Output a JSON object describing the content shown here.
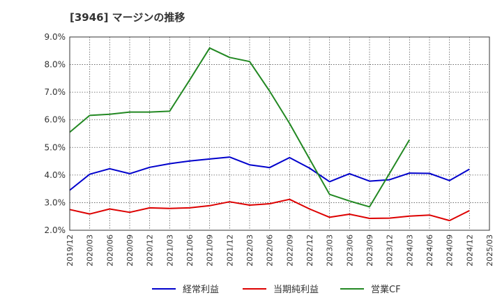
{
  "chart_data": {
    "type": "line",
    "title": "[3946]  マージンの推移",
    "xlabel": "",
    "ylabel": "",
    "ylim": [
      2.0,
      9.0
    ],
    "y_ticks": [
      "2.0%",
      "3.0%",
      "4.0%",
      "5.0%",
      "6.0%",
      "7.0%",
      "8.0%",
      "9.0%"
    ],
    "x": [
      "2019/12",
      "2020/03",
      "2020/06",
      "2020/09",
      "2020/12",
      "2021/03",
      "2021/06",
      "2021/09",
      "2021/12",
      "2022/03",
      "2022/06",
      "2022/09",
      "2022/12",
      "2023/03",
      "2023/06",
      "2023/09",
      "2023/12",
      "2024/03",
      "2024/06",
      "2024/09",
      "2024/12",
      "2025/03"
    ],
    "grid": true,
    "legend_position": "bottom",
    "series": [
      {
        "name": "経常利益",
        "color": "#0000cc",
        "values": [
          3.45,
          4.03,
          4.23,
          4.05,
          4.28,
          4.41,
          4.51,
          4.58,
          4.65,
          4.37,
          4.27,
          4.63,
          4.25,
          3.76,
          4.05,
          3.78,
          3.83,
          4.07,
          4.06,
          3.8,
          4.21,
          null
        ]
      },
      {
        "name": "当期純利益",
        "color": "#dd0000",
        "values": [
          2.75,
          2.59,
          2.77,
          2.65,
          2.81,
          2.79,
          2.81,
          2.89,
          3.03,
          2.91,
          2.96,
          3.12,
          2.77,
          2.47,
          2.58,
          2.43,
          2.44,
          2.51,
          2.55,
          2.35,
          2.71,
          null
        ]
      },
      {
        "name": "営業CF",
        "color": "#228822",
        "values": [
          5.55,
          6.16,
          6.2,
          6.28,
          6.28,
          6.31,
          7.44,
          8.6,
          8.26,
          8.11,
          7.04,
          5.87,
          4.58,
          3.3,
          3.06,
          2.85,
          4.06,
          5.28,
          null,
          null,
          null,
          null
        ]
      }
    ]
  }
}
